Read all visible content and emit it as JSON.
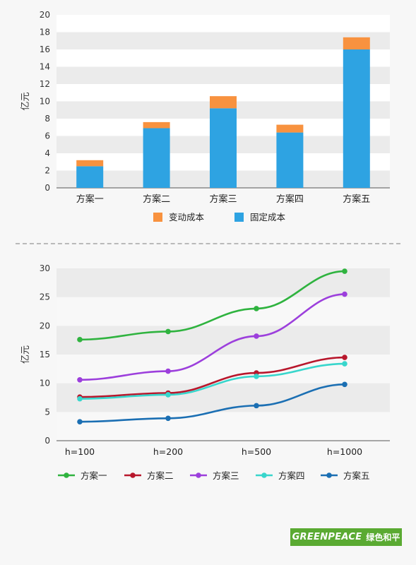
{
  "chart_data": [
    {
      "type": "bar",
      "stacked": true,
      "categories": [
        "方案一",
        "方案二",
        "方案三",
        "方案四",
        "方案五"
      ],
      "series": [
        {
          "name": "固定成本",
          "values": [
            2.5,
            6.9,
            9.2,
            6.4,
            16.0
          ],
          "color": "#2ea3e2"
        },
        {
          "name": "变动成本",
          "values": [
            0.7,
            0.7,
            1.4,
            0.9,
            1.4
          ],
          "color": "#f8923f"
        }
      ],
      "ylabel": "亿元",
      "ylim": [
        0,
        20
      ],
      "yticks": [
        0,
        2,
        4,
        6,
        8,
        10,
        12,
        14,
        16,
        18,
        20
      ],
      "legend": [
        "变动成本",
        "固定成本"
      ],
      "legend_position": "bottom",
      "grid": "banded"
    },
    {
      "type": "line",
      "categories": [
        "h=100",
        "h=200",
        "h=500",
        "h=1000"
      ],
      "series": [
        {
          "name": "方案一",
          "values": [
            17.6,
            19.0,
            23.0,
            29.5
          ],
          "color": "#2fb33f"
        },
        {
          "name": "方案二",
          "values": [
            7.6,
            8.3,
            11.8,
            14.5
          ],
          "color": "#b8172c"
        },
        {
          "name": "方案三",
          "values": [
            10.6,
            12.1,
            18.2,
            25.5
          ],
          "color": "#9c3fdc"
        },
        {
          "name": "方案四",
          "values": [
            7.3,
            8.0,
            11.2,
            13.4
          ],
          "color": "#38d6cc"
        },
        {
          "name": "方案五",
          "values": [
            3.3,
            3.9,
            6.1,
            9.8
          ],
          "color": "#1b6fb3"
        }
      ],
      "ylabel": "亿元",
      "ylim": [
        0,
        30
      ],
      "yticks": [
        0,
        5,
        10,
        15,
        20,
        25,
        30
      ],
      "legend_position": "bottom",
      "grid": "banded"
    }
  ],
  "logo": {
    "word": "GREENPEACE",
    "cn": "绿色和平"
  }
}
